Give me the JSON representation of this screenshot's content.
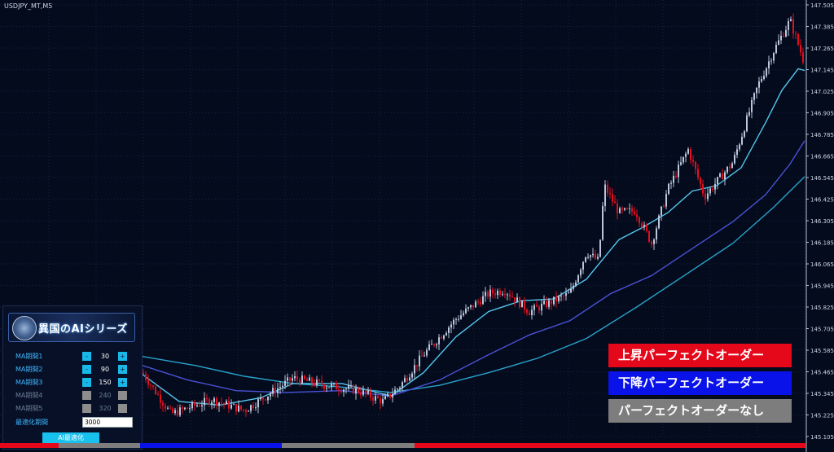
{
  "chart": {
    "symbol": "USDJPY_MT,M5",
    "price_axis": [
      "147.505",
      "147.385",
      "147.265",
      "147.145",
      "147.025",
      "146.905",
      "146.785",
      "146.665",
      "146.545",
      "146.425",
      "146.305",
      "146.185",
      "146.065",
      "145.945",
      "145.825",
      "145.705",
      "145.585",
      "145.465",
      "145.345",
      "145.225",
      "145.105"
    ],
    "colors": {
      "background": "#040b1c",
      "grid": "#16233f",
      "bull": "#b9c6dc",
      "bear": "#e01020",
      "ma1": "#54c6ee",
      "ma2": "#4a52d8",
      "ma3": "#2aa2cc"
    }
  },
  "panel": {
    "logo_text": "異国のAIシリーズ",
    "params": [
      {
        "label": "MA期間1",
        "value": "30",
        "enabled": true
      },
      {
        "label": "MA期間2",
        "value": "90",
        "enabled": true
      },
      {
        "label": "MA期間3",
        "value": "150",
        "enabled": true
      },
      {
        "label": "MA期間4",
        "value": "240",
        "enabled": false
      },
      {
        "label": "MA期間5",
        "value": "320",
        "enabled": false
      }
    ],
    "minus_label": "-",
    "plus_label": "+",
    "optimize_label": "最適化期間",
    "optimize_value": "3000",
    "ai_button_label": "AI最適化"
  },
  "legend": {
    "up": "上昇パーフェクトオーダー",
    "down": "下降パーフェクトオーダー",
    "none": "パーフェクトオーダーなし",
    "colors": {
      "up": "#e4081a",
      "down": "#0a12ea",
      "none": "#7d7d7d"
    }
  },
  "trend_bar": [
    {
      "state": "up",
      "color": "#e4081a"
    },
    {
      "state": "none",
      "color": "#7d7d7d"
    },
    {
      "state": "down",
      "color": "#0a12ea"
    },
    {
      "state": "none",
      "color": "#7d7d7d"
    },
    {
      "state": "up",
      "color": "#e4081a"
    }
  ]
}
